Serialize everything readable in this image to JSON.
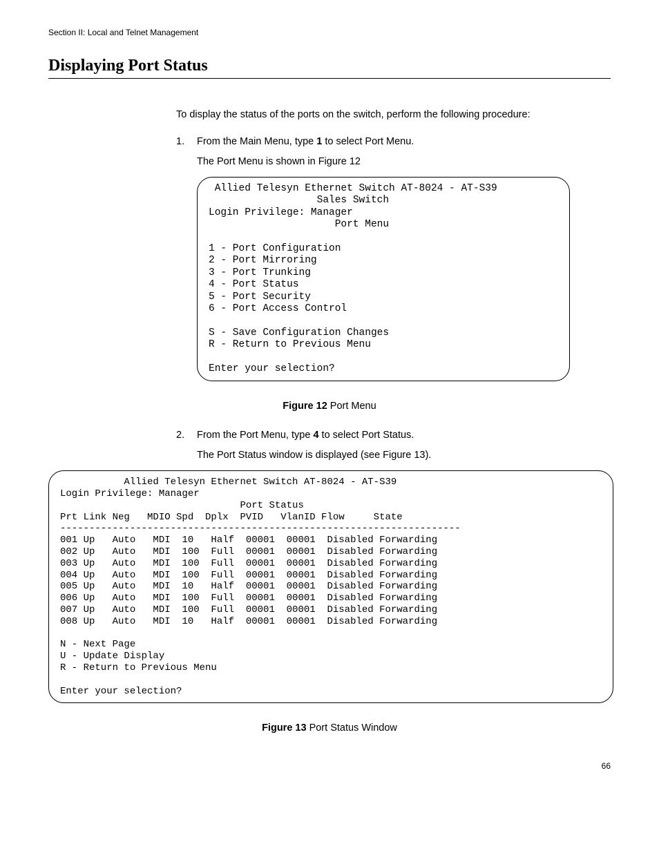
{
  "page": {
    "header": "Section II: Local and Telnet Management",
    "title": "Displaying Port Status",
    "page_number": "66"
  },
  "body": {
    "intro": "To display the status of the ports on the switch, perform the following procedure:",
    "step1_num": "1.",
    "step1_pre": "From the Main Menu, type ",
    "step1_bold": "1",
    "step1_post": " to select Port Menu.",
    "step1_sub": "The Port Menu is shown in Figure 12",
    "step2_num": "2.",
    "step2_pre": "From the Port Menu, type ",
    "step2_bold": "4",
    "step2_post": " to select Port Status.",
    "step2_sub": "The Port Status window is displayed (see Figure 13)."
  },
  "terminal1": {
    "line1": " Allied Telesyn Ethernet Switch AT-8024 - AT-S39",
    "line2": "                  Sales Switch",
    "line3": "Login Privilege: Manager",
    "line4": "                     Port Menu",
    "opt1": "1 - Port Configuration",
    "opt2": "2 - Port Mirroring",
    "opt3": "3 - Port Trunking",
    "opt4": "4 - Port Status",
    "opt5": "5 - Port Security",
    "opt6": "6 - Port Access Control",
    "optS": "S - Save Configuration Changes",
    "optR": "R - Return to Previous Menu",
    "prompt": "Enter your selection?"
  },
  "figure12": {
    "label": "Figure 12",
    "caption": "  Port Menu"
  },
  "terminal2": {
    "line1": "           Allied Telesyn Ethernet Switch AT-8024 - AT-S39",
    "line2": "Login Privilege: Manager",
    "line3": "                               Port Status",
    "header_row": "Prt Link Neg   MDIO Spd  Dplx  PVID   VlanID Flow     State",
    "divider": "---------------------------------------------------------------------",
    "port_rows": [
      {
        "prt": "001",
        "link": "Up",
        "neg": "Auto",
        "mdio": "MDI",
        "spd": "10",
        "dplx": "Half",
        "pvid": "00001",
        "vlanid": "00001",
        "flow": "Disabled",
        "state": "Forwarding"
      },
      {
        "prt": "002",
        "link": "Up",
        "neg": "Auto",
        "mdio": "MDI",
        "spd": "100",
        "dplx": "Full",
        "pvid": "00001",
        "vlanid": "00001",
        "flow": "Disabled",
        "state": "Forwarding"
      },
      {
        "prt": "003",
        "link": "Up",
        "neg": "Auto",
        "mdio": "MDI",
        "spd": "100",
        "dplx": "Full",
        "pvid": "00001",
        "vlanid": "00001",
        "flow": "Disabled",
        "state": "Forwarding"
      },
      {
        "prt": "004",
        "link": "Up",
        "neg": "Auto",
        "mdio": "MDI",
        "spd": "100",
        "dplx": "Full",
        "pvid": "00001",
        "vlanid": "00001",
        "flow": "Disabled",
        "state": "Forwarding"
      },
      {
        "prt": "005",
        "link": "Up",
        "neg": "Auto",
        "mdio": "MDI",
        "spd": "10",
        "dplx": "Half",
        "pvid": "00001",
        "vlanid": "00001",
        "flow": "Disabled",
        "state": "Forwarding"
      },
      {
        "prt": "006",
        "link": "Up",
        "neg": "Auto",
        "mdio": "MDI",
        "spd": "100",
        "dplx": "Full",
        "pvid": "00001",
        "vlanid": "00001",
        "flow": "Disabled",
        "state": "Forwarding"
      },
      {
        "prt": "007",
        "link": "Up",
        "neg": "Auto",
        "mdio": "MDI",
        "spd": "100",
        "dplx": "Full",
        "pvid": "00001",
        "vlanid": "00001",
        "flow": "Disabled",
        "state": "Forwarding"
      },
      {
        "prt": "008",
        "link": "Up",
        "neg": "Auto",
        "mdio": "MDI",
        "spd": "10",
        "dplx": "Half",
        "pvid": "00001",
        "vlanid": "00001",
        "flow": "Disabled",
        "state": "Forwarding"
      }
    ],
    "optN": "N - Next Page",
    "optU": "U - Update Display",
    "optR": "R - Return to Previous Menu",
    "prompt": "Enter your selection?"
  },
  "figure13": {
    "label": "Figure 13",
    "caption": "  Port Status Window"
  }
}
